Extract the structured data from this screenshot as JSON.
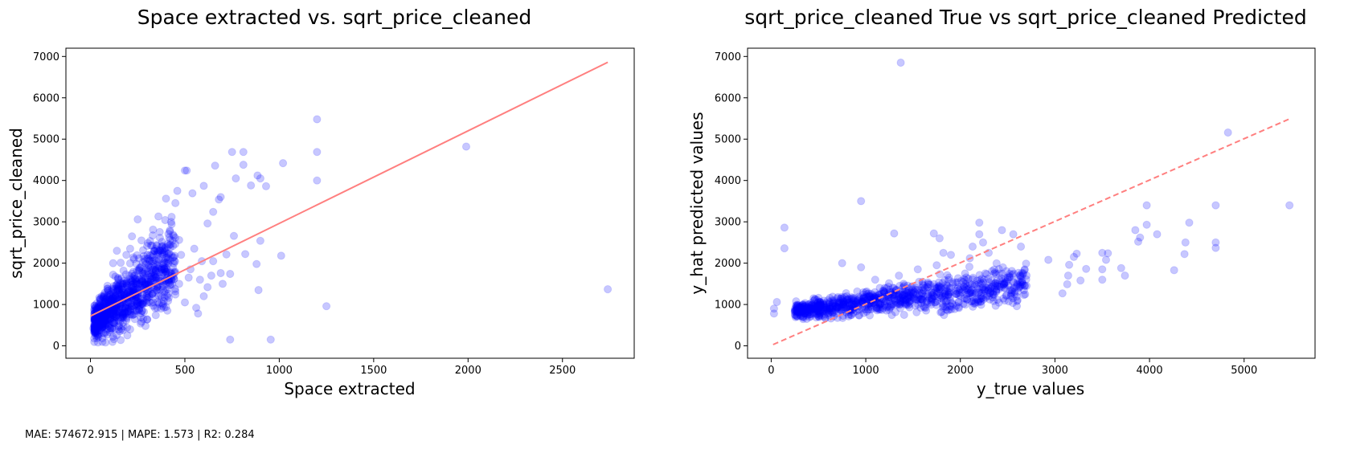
{
  "footer": {
    "metrics": "MAE: 574672.915 | MAPE: 1.573 | R2: 0.284"
  },
  "colors": {
    "points": "#0000ff",
    "fit_line": "#ff7f7f"
  },
  "chart_data": [
    {
      "type": "scatter",
      "title": "Space extracted vs. sqrt_price_cleaned",
      "xlabel": "Space extracted",
      "ylabel": "sqrt_price_cleaned",
      "xlim": [
        -130,
        2880
      ],
      "ylim": [
        -300,
        7200
      ],
      "xticks": [
        0,
        500,
        1000,
        1500,
        2000,
        2500
      ],
      "yticks": [
        0,
        1000,
        2000,
        3000,
        4000,
        5000,
        6000,
        7000
      ],
      "grid": false,
      "point_alpha": 0.22,
      "fit_line": {
        "style": "solid",
        "x": [
          0,
          2740
        ],
        "y": [
          720,
          6860
        ]
      },
      "cluster": {
        "note": "dense cluster",
        "x_range": [
          20,
          450
        ],
        "y_range": [
          100,
          2500
        ]
      },
      "points": [
        {
          "x": 1200,
          "y": 5480
        },
        {
          "x": 1200,
          "y": 4690
        },
        {
          "x": 1200,
          "y": 4000
        },
        {
          "x": 1990,
          "y": 4820
        },
        {
          "x": 2740,
          "y": 1370
        },
        {
          "x": 1250,
          "y": 960
        },
        {
          "x": 955,
          "y": 150
        },
        {
          "x": 740,
          "y": 150
        },
        {
          "x": 1020,
          "y": 4420
        },
        {
          "x": 1010,
          "y": 2180
        },
        {
          "x": 880,
          "y": 1980
        },
        {
          "x": 890,
          "y": 1350
        },
        {
          "x": 820,
          "y": 2220
        },
        {
          "x": 900,
          "y": 2540
        },
        {
          "x": 900,
          "y": 4050
        },
        {
          "x": 885,
          "y": 4120
        },
        {
          "x": 750,
          "y": 4690
        },
        {
          "x": 810,
          "y": 4690
        },
        {
          "x": 810,
          "y": 4380
        },
        {
          "x": 770,
          "y": 4050
        },
        {
          "x": 850,
          "y": 3880
        },
        {
          "x": 930,
          "y": 3860
        },
        {
          "x": 680,
          "y": 3540
        },
        {
          "x": 690,
          "y": 3600
        },
        {
          "x": 660,
          "y": 4360
        },
        {
          "x": 500,
          "y": 4240
        },
        {
          "x": 510,
          "y": 4240
        },
        {
          "x": 460,
          "y": 3750
        },
        {
          "x": 540,
          "y": 3690
        },
        {
          "x": 600,
          "y": 3870
        },
        {
          "x": 650,
          "y": 3240
        },
        {
          "x": 620,
          "y": 2960
        },
        {
          "x": 760,
          "y": 2660
        },
        {
          "x": 720,
          "y": 2210
        },
        {
          "x": 690,
          "y": 1760
        },
        {
          "x": 700,
          "y": 1500
        },
        {
          "x": 740,
          "y": 1740
        },
        {
          "x": 620,
          "y": 1420
        },
        {
          "x": 600,
          "y": 1200
        },
        {
          "x": 570,
          "y": 780
        },
        {
          "x": 560,
          "y": 920
        },
        {
          "x": 520,
          "y": 1650
        },
        {
          "x": 480,
          "y": 2200
        },
        {
          "x": 430,
          "y": 3120
        },
        {
          "x": 360,
          "y": 3130
        },
        {
          "x": 250,
          "y": 3060
        },
        {
          "x": 400,
          "y": 3560
        },
        {
          "x": 430,
          "y": 2940
        },
        {
          "x": 330,
          "y": 2670
        },
        {
          "x": 300,
          "y": 2420
        },
        {
          "x": 360,
          "y": 2270
        },
        {
          "x": 400,
          "y": 2010
        },
        {
          "x": 420,
          "y": 1760
        },
        {
          "x": 450,
          "y": 1320
        },
        {
          "x": 380,
          "y": 1180
        },
        {
          "x": 400,
          "y": 940
        },
        {
          "x": 300,
          "y": 640
        },
        {
          "x": 270,
          "y": 580
        },
        {
          "x": 160,
          "y": 140
        },
        {
          "x": 120,
          "y": 220
        },
        {
          "x": 80,
          "y": 80
        },
        {
          "x": 40,
          "y": 80
        },
        {
          "x": 20,
          "y": 180
        },
        {
          "x": 15,
          "y": 420
        },
        {
          "x": 30,
          "y": 650
        },
        {
          "x": 30,
          "y": 880
        },
        {
          "x": 60,
          "y": 1200
        },
        {
          "x": 90,
          "y": 1450
        },
        {
          "x": 120,
          "y": 1720
        },
        {
          "x": 160,
          "y": 2010
        },
        {
          "x": 190,
          "y": 2200
        },
        {
          "x": 230,
          "y": 2100
        },
        {
          "x": 260,
          "y": 1820
        },
        {
          "x": 220,
          "y": 1550
        },
        {
          "x": 180,
          "y": 1280
        },
        {
          "x": 140,
          "y": 1030
        },
        {
          "x": 100,
          "y": 860
        },
        {
          "x": 70,
          "y": 700
        },
        {
          "x": 50,
          "y": 560
        },
        {
          "x": 200,
          "y": 940
        },
        {
          "x": 240,
          "y": 1180
        },
        {
          "x": 280,
          "y": 1400
        },
        {
          "x": 320,
          "y": 1620
        },
        {
          "x": 340,
          "y": 1900
        },
        {
          "x": 290,
          "y": 2050
        },
        {
          "x": 210,
          "y": 2350
        },
        {
          "x": 150,
          "y": 1600
        },
        {
          "x": 110,
          "y": 1300
        },
        {
          "x": 80,
          "y": 1050
        },
        {
          "x": 60,
          "y": 900
        },
        {
          "x": 130,
          "y": 800
        },
        {
          "x": 170,
          "y": 1100
        },
        {
          "x": 250,
          "y": 1000
        },
        {
          "x": 350,
          "y": 1350
        },
        {
          "x": 390,
          "y": 1550
        },
        {
          "x": 310,
          "y": 1180
        },
        {
          "x": 230,
          "y": 760
        },
        {
          "x": 190,
          "y": 620
        },
        {
          "x": 100,
          "y": 520
        },
        {
          "x": 40,
          "y": 420
        },
        {
          "x": 25,
          "y": 700
        },
        {
          "x": 45,
          "y": 1000
        },
        {
          "x": 140,
          "y": 2300
        },
        {
          "x": 270,
          "y": 2550
        },
        {
          "x": 220,
          "y": 2650
        },
        {
          "x": 320,
          "y": 2180
        },
        {
          "x": 410,
          "y": 2400
        },
        {
          "x": 470,
          "y": 2560
        },
        {
          "x": 550,
          "y": 2350
        },
        {
          "x": 590,
          "y": 2050
        },
        {
          "x": 650,
          "y": 2050
        },
        {
          "x": 530,
          "y": 1850
        },
        {
          "x": 470,
          "y": 1500
        },
        {
          "x": 500,
          "y": 1050
        },
        {
          "x": 580,
          "y": 1600
        },
        {
          "x": 640,
          "y": 1700
        },
        {
          "x": 120,
          "y": 2000
        },
        {
          "x": 175,
          "y": 1820
        },
        {
          "x": 205,
          "y": 1700
        },
        {
          "x": 95,
          "y": 1100
        },
        {
          "x": 65,
          "y": 620
        },
        {
          "x": 150,
          "y": 460
        },
        {
          "x": 210,
          "y": 400
        }
      ]
    },
    {
      "type": "scatter",
      "title": "sqrt_price_cleaned True vs sqrt_price_cleaned Predicted",
      "xlabel": "y_true values",
      "ylabel": "y_hat predicted values",
      "xlim": [
        -250,
        5750
      ],
      "ylim": [
        -300,
        7200
      ],
      "xticks": [
        0,
        1000,
        2000,
        3000,
        4000,
        5000
      ],
      "yticks": [
        0,
        1000,
        2000,
        3000,
        4000,
        5000,
        6000,
        7000
      ],
      "grid": false,
      "point_alpha": 0.22,
      "fit_line": {
        "style": "dashed",
        "x": [
          20,
          5480
        ],
        "y": [
          30,
          5490
        ]
      },
      "cluster": {
        "note": "dense band",
        "x_range": [
          250,
          2700
        ],
        "y_range": [
          700,
          1700
        ]
      },
      "points": [
        {
          "x": 1370,
          "y": 6850
        },
        {
          "x": 4830,
          "y": 5160
        },
        {
          "x": 950,
          "y": 3500
        },
        {
          "x": 140,
          "y": 2860
        },
        {
          "x": 140,
          "y": 2360
        },
        {
          "x": 60,
          "y": 1060
        },
        {
          "x": 30,
          "y": 900
        },
        {
          "x": 30,
          "y": 780
        },
        {
          "x": 5480,
          "y": 3400
        },
        {
          "x": 4700,
          "y": 3400
        },
        {
          "x": 4700,
          "y": 2500
        },
        {
          "x": 4700,
          "y": 2370
        },
        {
          "x": 4420,
          "y": 2980
        },
        {
          "x": 4380,
          "y": 2500
        },
        {
          "x": 4370,
          "y": 2220
        },
        {
          "x": 4260,
          "y": 1830
        },
        {
          "x": 4080,
          "y": 2700
        },
        {
          "x": 3970,
          "y": 3400
        },
        {
          "x": 3970,
          "y": 2930
        },
        {
          "x": 3850,
          "y": 2800
        },
        {
          "x": 3880,
          "y": 2520
        },
        {
          "x": 3900,
          "y": 2620
        },
        {
          "x": 3700,
          "y": 1880
        },
        {
          "x": 3740,
          "y": 1700
        },
        {
          "x": 3560,
          "y": 2240
        },
        {
          "x": 3500,
          "y": 2250
        },
        {
          "x": 3540,
          "y": 2080
        },
        {
          "x": 3500,
          "y": 1850
        },
        {
          "x": 3500,
          "y": 1600
        },
        {
          "x": 3330,
          "y": 1860
        },
        {
          "x": 3230,
          "y": 2230
        },
        {
          "x": 3200,
          "y": 2150
        },
        {
          "x": 3150,
          "y": 1960
        },
        {
          "x": 3140,
          "y": 1700
        },
        {
          "x": 3130,
          "y": 1490
        },
        {
          "x": 3080,
          "y": 1270
        },
        {
          "x": 2930,
          "y": 2080
        },
        {
          "x": 3270,
          "y": 1580
        },
        {
          "x": 2640,
          "y": 2400
        },
        {
          "x": 2560,
          "y": 2700
        },
        {
          "x": 2440,
          "y": 2800
        },
        {
          "x": 2200,
          "y": 2980
        },
        {
          "x": 2200,
          "y": 2700
        },
        {
          "x": 2240,
          "y": 2500
        },
        {
          "x": 2130,
          "y": 2400
        },
        {
          "x": 1780,
          "y": 2600
        },
        {
          "x": 1720,
          "y": 2720
        },
        {
          "x": 1300,
          "y": 2720
        },
        {
          "x": 1820,
          "y": 2250
        },
        {
          "x": 1900,
          "y": 2200
        },
        {
          "x": 2300,
          "y": 2250
        },
        {
          "x": 2100,
          "y": 2120
        },
        {
          "x": 2450,
          "y": 1900
        },
        {
          "x": 2650,
          "y": 1760
        },
        {
          "x": 2500,
          "y": 1650
        },
        {
          "x": 2600,
          "y": 1500
        },
        {
          "x": 2300,
          "y": 1450
        },
        {
          "x": 2200,
          "y": 1300
        },
        {
          "x": 2000,
          "y": 1200
        },
        {
          "x": 1800,
          "y": 1150
        },
        {
          "x": 1600,
          "y": 1100
        },
        {
          "x": 1400,
          "y": 1050
        },
        {
          "x": 1200,
          "y": 1000
        },
        {
          "x": 1000,
          "y": 950
        },
        {
          "x": 800,
          "y": 900
        },
        {
          "x": 600,
          "y": 850
        },
        {
          "x": 400,
          "y": 820
        },
        {
          "x": 300,
          "y": 800
        },
        {
          "x": 500,
          "y": 900
        },
        {
          "x": 700,
          "y": 950
        },
        {
          "x": 900,
          "y": 1050
        },
        {
          "x": 1100,
          "y": 1100
        },
        {
          "x": 1300,
          "y": 1150
        },
        {
          "x": 1500,
          "y": 1250
        },
        {
          "x": 1700,
          "y": 1300
        },
        {
          "x": 1900,
          "y": 1400
        },
        {
          "x": 2100,
          "y": 1500
        },
        {
          "x": 1000,
          "y": 1300
        },
        {
          "x": 1200,
          "y": 1400
        },
        {
          "x": 1400,
          "y": 1500
        },
        {
          "x": 1600,
          "y": 1550
        },
        {
          "x": 800,
          "y": 1200
        },
        {
          "x": 600,
          "y": 1100
        },
        {
          "x": 400,
          "y": 1000
        },
        {
          "x": 1100,
          "y": 1600
        },
        {
          "x": 1350,
          "y": 1700
        },
        {
          "x": 1550,
          "y": 1850
        },
        {
          "x": 1750,
          "y": 1950
        },
        {
          "x": 950,
          "y": 1900
        },
        {
          "x": 750,
          "y": 2000
        },
        {
          "x": 350,
          "y": 950
        },
        {
          "x": 250,
          "y": 850
        },
        {
          "x": 450,
          "y": 780
        },
        {
          "x": 650,
          "y": 800
        },
        {
          "x": 850,
          "y": 850
        },
        {
          "x": 1050,
          "y": 880
        },
        {
          "x": 1250,
          "y": 920
        },
        {
          "x": 1450,
          "y": 980
        },
        {
          "x": 1650,
          "y": 1020
        },
        {
          "x": 1850,
          "y": 1080
        },
        {
          "x": 2050,
          "y": 1150
        },
        {
          "x": 2350,
          "y": 1250
        },
        {
          "x": 2550,
          "y": 1350
        },
        {
          "x": 2700,
          "y": 1450
        },
        {
          "x": 1150,
          "y": 1250
        },
        {
          "x": 1320,
          "y": 1330
        },
        {
          "x": 1480,
          "y": 1420
        },
        {
          "x": 1680,
          "y": 1480
        },
        {
          "x": 1880,
          "y": 1650
        },
        {
          "x": 2050,
          "y": 1750
        },
        {
          "x": 2250,
          "y": 1600
        },
        {
          "x": 550,
          "y": 1000
        },
        {
          "x": 700,
          "y": 1150
        },
        {
          "x": 850,
          "y": 1000
        }
      ]
    }
  ]
}
